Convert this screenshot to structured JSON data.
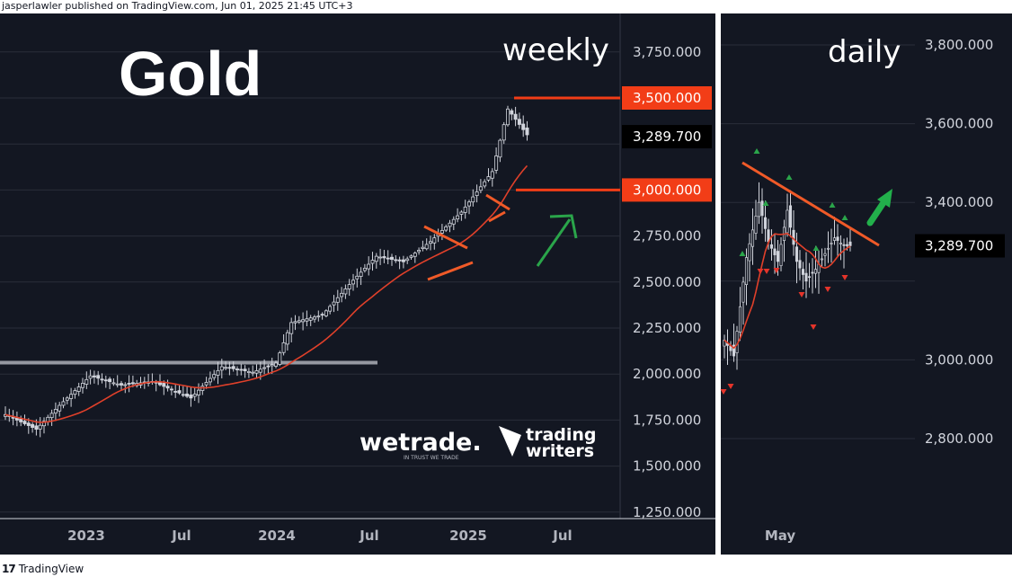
{
  "header": {
    "text": "jasperlawler published on TradingView.com, Jun 01, 2025 21:45 UTC+3"
  },
  "footer": {
    "brand": "TradingView"
  },
  "watermarks": {
    "wetrade": "wetrade.",
    "wetrade_tagline": "IN TRUST WE TRADE",
    "tw_line1": "trading",
    "tw_line2": "writers"
  },
  "colors": {
    "bg": "#131722",
    "candle": "#d1d4dc",
    "ma": "#e0402a",
    "annot": "#f05a28",
    "arrow": "#2aa54a",
    "level": "#f23d17",
    "grid": "#2a2e39"
  },
  "chart_data": [
    {
      "type": "candlestick",
      "title": "Gold",
      "subtitle": "weekly",
      "ylim": [
        1250,
        3850
      ],
      "y_ticks": [
        "3,750.000",
        "3,500.000",
        "2,750.000",
        "2,500.000",
        "2,250.000",
        "2,000.000",
        "1,750.000",
        "1,500.000",
        "1,250.000"
      ],
      "x_ticks": [
        "2023",
        "Jul",
        "2024",
        "Jul",
        "2025",
        "Jul"
      ],
      "levels": [
        {
          "label": "3,500.000",
          "value": 3500
        },
        {
          "label": "3,000.000",
          "value": 3000
        }
      ],
      "last_price": {
        "label": "3,289.700",
        "value": 3289.7
      },
      "horizontal_line": 2062,
      "close_anchors": [
        [
          0,
          1780
        ],
        [
          8,
          1700
        ],
        [
          14,
          1830
        ],
        [
          22,
          1990
        ],
        [
          30,
          1940
        ],
        [
          38,
          1960
        ],
        [
          48,
          1870
        ],
        [
          56,
          2040
        ],
        [
          64,
          2010
        ],
        [
          70,
          2060
        ],
        [
          74,
          2280
        ],
        [
          82,
          2320
        ],
        [
          90,
          2510
        ],
        [
          96,
          2640
        ],
        [
          103,
          2610
        ],
        [
          110,
          2720
        ],
        [
          118,
          2880
        ],
        [
          126,
          3100
        ],
        [
          130,
          3440
        ],
        [
          135,
          3300
        ]
      ],
      "ma_period": 20
    },
    {
      "type": "candlestick",
      "subtitle": "daily",
      "ylim": [
        2700,
        3900
      ],
      "y_ticks": [
        "3,800.000",
        "3,600.000",
        "3,400.000",
        "3,000.000",
        "2,800.000"
      ],
      "x_ticks": [
        "May"
      ],
      "last_price": {
        "label": "3,289.700",
        "value": 3289.7
      },
      "close_anchors": [
        [
          0,
          3050
        ],
        [
          3,
          3010
        ],
        [
          7,
          3260
        ],
        [
          11,
          3400
        ],
        [
          14,
          3300
        ],
        [
          17,
          3250
        ],
        [
          20,
          3380
        ],
        [
          23,
          3250
        ],
        [
          26,
          3200
        ],
        [
          29,
          3230
        ],
        [
          32,
          3270
        ],
        [
          35,
          3310
        ],
        [
          38,
          3290
        ],
        [
          40,
          3290
        ]
      ],
      "ma_period": 10
    }
  ]
}
